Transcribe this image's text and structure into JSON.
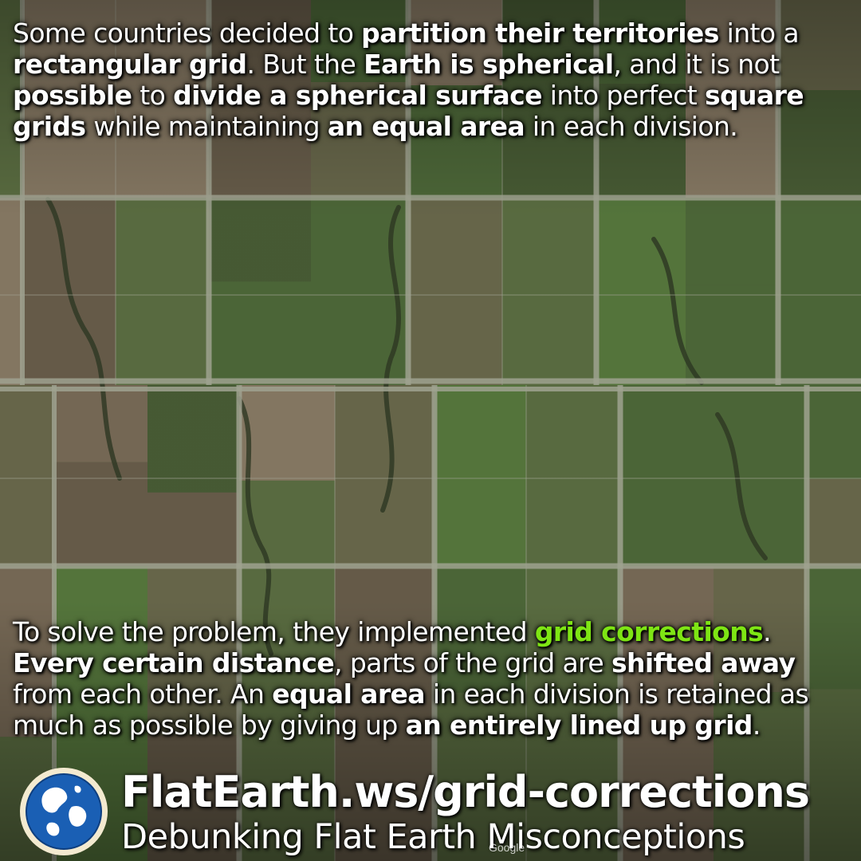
{
  "top_paragraph": [
    {
      "text": "Some countries decided to ",
      "style": "normal"
    },
    {
      "text": "partition their territories",
      "style": "bold"
    },
    {
      "text": " into a ",
      "style": "normal"
    },
    {
      "text": "rectangular grid",
      "style": "bold"
    },
    {
      "text": ". But the ",
      "style": "normal"
    },
    {
      "text": "Earth is spherical",
      "style": "bold"
    },
    {
      "text": ", and it is not ",
      "style": "normal"
    },
    {
      "text": "possible",
      "style": "bold"
    },
    {
      "text": " to ",
      "style": "normal"
    },
    {
      "text": "divide a spherical surface",
      "style": "bold"
    },
    {
      "text": " into perfect ",
      "style": "normal"
    },
    {
      "text": "square grids",
      "style": "bold"
    },
    {
      "text": " while maintaining ",
      "style": "normal"
    },
    {
      "text": "an equal area",
      "style": "bold"
    },
    {
      "text": " in each division.",
      "style": "normal"
    }
  ],
  "bottom_paragraph": [
    {
      "text": "To solve the problem, they implemented ",
      "style": "normal"
    },
    {
      "text": "grid corrections",
      "style": "green"
    },
    {
      "text": ". ",
      "style": "normal"
    },
    {
      "text": "Every certain distance",
      "style": "bold"
    },
    {
      "text": ", parts of the grid are ",
      "style": "normal"
    },
    {
      "text": "shifted away",
      "style": "bold"
    },
    {
      "text": " from each other. An ",
      "style": "normal"
    },
    {
      "text": "equal area",
      "style": "bold"
    },
    {
      "text": " in each division is retained as much as possible by giving up ",
      "style": "normal"
    },
    {
      "text": "an entirely lined up grid",
      "style": "bold"
    },
    {
      "text": ".",
      "style": "normal"
    }
  ],
  "footer": {
    "url": "FlatEarth.ws/grid-corrections",
    "tagline": "Debunking Flat Earth Misconceptions",
    "logo_icon": "globe-icon"
  },
  "map_watermark": "Google",
  "colors": {
    "highlight_green": "#7ee514",
    "text": "#ffffff",
    "globe_blue": "#1a5fb4",
    "globe_ring": "#f3ead0"
  }
}
